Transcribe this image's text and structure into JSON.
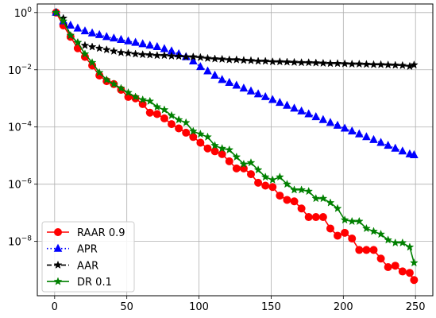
{
  "chart_data": {
    "type": "line",
    "title": "",
    "xlabel": "",
    "ylabel": "",
    "xlim": [
      -12,
      262
    ],
    "ylim_log10": [
      -9.9,
      0.3
    ],
    "yscale": "log",
    "grid": true,
    "legend_position": "lower-left",
    "x_ticks": [
      {
        "value": 0,
        "label": "0"
      },
      {
        "value": 50,
        "label": "50"
      },
      {
        "value": 100,
        "label": "100"
      },
      {
        "value": 150,
        "label": "150"
      },
      {
        "value": 200,
        "label": "200"
      },
      {
        "value": 250,
        "label": "250"
      }
    ],
    "y_ticks": [
      {
        "exp": 0,
        "base": "10",
        "sup": "0"
      },
      {
        "exp": -2,
        "base": "10",
        "sup": "−2"
      },
      {
        "exp": -4,
        "base": "10",
        "sup": "−4"
      },
      {
        "exp": -6,
        "base": "10",
        "sup": "−6"
      },
      {
        "exp": -8,
        "base": "10",
        "sup": "−8"
      }
    ],
    "x": [
      1,
      6,
      11,
      16,
      21,
      26,
      31,
      36,
      41,
      46,
      51,
      56,
      61,
      66,
      71,
      76,
      81,
      86,
      91,
      96,
      101,
      106,
      111,
      116,
      121,
      126,
      131,
      136,
      141,
      146,
      151,
      156,
      161,
      166,
      171,
      176,
      181,
      186,
      191,
      196,
      201,
      206,
      211,
      216,
      221,
      226,
      231,
      236,
      241,
      246,
      249
    ],
    "series": [
      {
        "name": "RAAR 0.9",
        "color": "#ff0000",
        "marker": "circle",
        "line": "solid",
        "log10_values": [
          0.0,
          -0.45,
          -0.85,
          -1.25,
          -1.55,
          -1.85,
          -2.2,
          -2.4,
          -2.5,
          -2.7,
          -2.95,
          -3.0,
          -3.2,
          -3.5,
          -3.55,
          -3.7,
          -3.9,
          -4.05,
          -4.2,
          -4.35,
          -4.55,
          -4.75,
          -4.85,
          -4.95,
          -5.2,
          -5.45,
          -5.45,
          -5.65,
          -5.95,
          -6.05,
          -6.1,
          -6.4,
          -6.55,
          -6.6,
          -6.85,
          -7.15,
          -7.15,
          -7.15,
          -7.55,
          -7.8,
          -7.7,
          -7.9,
          -8.3,
          -8.3,
          -8.3,
          -8.6,
          -8.9,
          -8.85,
          -9.05,
          -9.1,
          -9.35
        ]
      },
      {
        "name": "APR",
        "color": "#0000ff",
        "marker": "triangle",
        "line": "dotted",
        "log10_values": [
          0.0,
          -0.3,
          -0.45,
          -0.55,
          -0.65,
          -0.72,
          -0.78,
          -0.85,
          -0.9,
          -0.95,
          -1.0,
          -1.05,
          -1.1,
          -1.15,
          -1.2,
          -1.27,
          -1.35,
          -1.45,
          -1.55,
          -1.7,
          -1.9,
          -2.05,
          -2.2,
          -2.35,
          -2.45,
          -2.55,
          -2.65,
          -2.75,
          -2.85,
          -2.95,
          -3.05,
          -3.15,
          -3.25,
          -3.35,
          -3.45,
          -3.55,
          -3.65,
          -3.75,
          -3.85,
          -3.95,
          -4.05,
          -4.15,
          -4.25,
          -4.35,
          -4.45,
          -4.55,
          -4.65,
          -4.75,
          -4.85,
          -4.95,
          -4.98
        ]
      },
      {
        "name": "AAR",
        "color": "#000000",
        "marker": "star",
        "line": "dashed",
        "log10_values": [
          0.0,
          -0.2,
          -0.8,
          -1.05,
          -1.15,
          -1.2,
          -1.25,
          -1.3,
          -1.35,
          -1.4,
          -1.42,
          -1.45,
          -1.47,
          -1.48,
          -1.5,
          -1.5,
          -1.52,
          -1.53,
          -1.55,
          -1.55,
          -1.57,
          -1.6,
          -1.62,
          -1.63,
          -1.65,
          -1.65,
          -1.67,
          -1.68,
          -1.7,
          -1.7,
          -1.72,
          -1.72,
          -1.73,
          -1.74,
          -1.75,
          -1.75,
          -1.76,
          -1.77,
          -1.78,
          -1.78,
          -1.79,
          -1.8,
          -1.8,
          -1.81,
          -1.82,
          -1.82,
          -1.83,
          -1.84,
          -1.85,
          -1.88,
          -1.83
        ]
      },
      {
        "name": "DR 0.1",
        "color": "#008000",
        "marker": "star",
        "line": "solid",
        "log10_values": [
          0.0,
          -0.3,
          -0.8,
          -1.05,
          -1.45,
          -1.75,
          -2.1,
          -2.35,
          -2.5,
          -2.65,
          -2.8,
          -2.95,
          -3.05,
          -3.1,
          -3.3,
          -3.4,
          -3.6,
          -3.75,
          -3.85,
          -4.15,
          -4.25,
          -4.35,
          -4.65,
          -4.75,
          -4.8,
          -5.05,
          -5.3,
          -5.25,
          -5.5,
          -5.75,
          -5.85,
          -5.75,
          -6.0,
          -6.2,
          -6.2,
          -6.25,
          -6.5,
          -6.5,
          -6.65,
          -6.85,
          -7.25,
          -7.3,
          -7.3,
          -7.55,
          -7.65,
          -7.75,
          -7.95,
          -8.05,
          -8.05,
          -8.2,
          -8.75
        ]
      }
    ]
  }
}
